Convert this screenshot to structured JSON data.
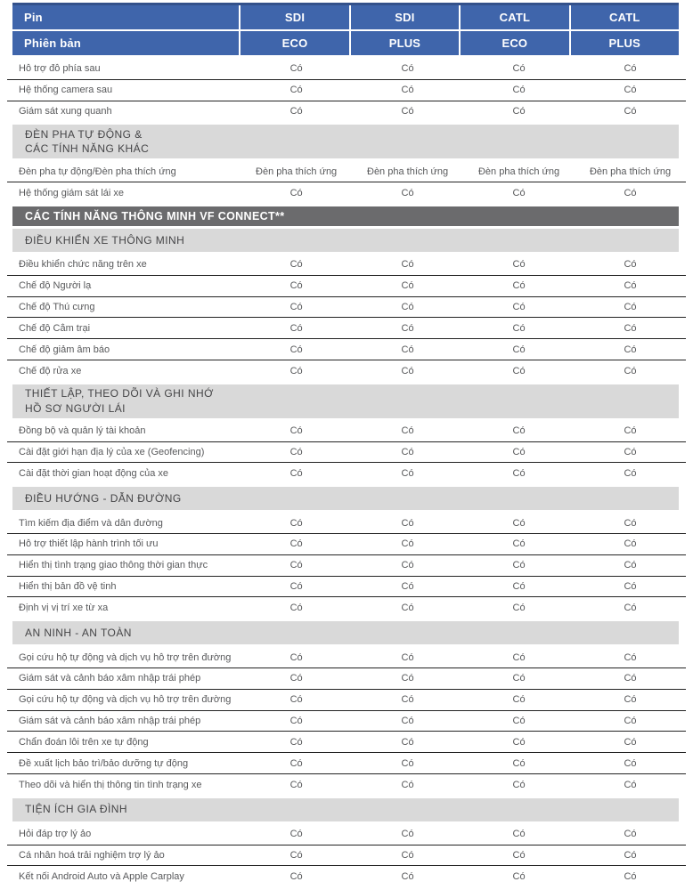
{
  "colors": {
    "header_blue": "#3F65AB",
    "header_blue_dark": "#33518B",
    "header_text": "#FFFFFF",
    "band_light": "#D9D9D9",
    "band_dark": "#6B6B6D",
    "band_text": "#454547",
    "body_text": "#58595B",
    "row_line": "#232323"
  },
  "table": {
    "header": {
      "row1_label": "Pin",
      "row1_values": [
        "SDI",
        "SDI",
        "CATL",
        "CATL"
      ],
      "row2_label": "Phiên bản",
      "row2_values": [
        "ECO",
        "PLUS",
        "ECO",
        "PLUS"
      ]
    },
    "yes_value": "Có",
    "body": [
      {
        "kind": "row",
        "label": "Hỗ trợ đỗ phía sau",
        "values": [
          "Có",
          "Có",
          "Có",
          "Có"
        ]
      },
      {
        "kind": "row",
        "label": "Hệ thống camera sau",
        "values": [
          "Có",
          "Có",
          "Có",
          "Có"
        ]
      },
      {
        "kind": "row",
        "label": "Giám sát xung quanh",
        "values": [
          "Có",
          "Có",
          "Có",
          "Có"
        ]
      },
      {
        "kind": "section_light",
        "lines": [
          "ĐÈN PHA TỰ ĐỘNG &",
          "CÁC TÍNH NĂNG KHÁC"
        ]
      },
      {
        "kind": "row",
        "label": "Đèn pha tự động/Đèn pha thích ứng",
        "values": [
          "Đèn pha thích ứng",
          "Đèn pha thích ứng",
          "Đèn pha thích ứng",
          "Đèn pha thích ứng"
        ]
      },
      {
        "kind": "row",
        "label": "Hệ thống giám sát lái xe",
        "values": [
          "Có",
          "Có",
          "Có",
          "Có"
        ]
      },
      {
        "kind": "section_dark",
        "lines": [
          "CÁC TÍNH NĂNG THÔNG MINH VF CONNECT**"
        ]
      },
      {
        "kind": "section_light",
        "lines": [
          "ĐIỀU KHIỂN XE THÔNG MINH"
        ]
      },
      {
        "kind": "row",
        "label": "Điều khiển chức năng trên xe",
        "values": [
          "Có",
          "Có",
          "Có",
          "Có"
        ]
      },
      {
        "kind": "row",
        "label": "Chế độ Người lạ",
        "values": [
          "Có",
          "Có",
          "Có",
          "Có"
        ]
      },
      {
        "kind": "row",
        "label": "Chế độ Thú cưng",
        "values": [
          "Có",
          "Có",
          "Có",
          "Có"
        ]
      },
      {
        "kind": "row",
        "label": "Chế độ Cắm trại",
        "values": [
          "Có",
          "Có",
          "Có",
          "Có"
        ]
      },
      {
        "kind": "row",
        "label": "Chế độ giảm âm báo",
        "values": [
          "Có",
          "Có",
          "Có",
          "Có"
        ]
      },
      {
        "kind": "row",
        "label": "Chế độ rửa xe",
        "values": [
          "Có",
          "Có",
          "Có",
          "Có"
        ]
      },
      {
        "kind": "section_light",
        "lines": [
          "THIẾT LẬP, THEO DÕI VÀ GHI NHỚ",
          "HỒ SƠ NGƯỜI LÁI"
        ]
      },
      {
        "kind": "row",
        "label": "Đồng bộ và quản lý tài khoản",
        "values": [
          "Có",
          "Có",
          "Có",
          "Có"
        ]
      },
      {
        "kind": "row",
        "label": "Cài đặt giới hạn địa lý của xe (Geofencing)",
        "values": [
          "Có",
          "Có",
          "Có",
          "Có"
        ]
      },
      {
        "kind": "row",
        "label": "Cài đặt thời gian hoạt động của xe",
        "values": [
          "Có",
          "Có",
          "Có",
          "Có"
        ]
      },
      {
        "kind": "section_light",
        "lines": [
          "ĐIỀU HƯỚNG - DẪN ĐƯỜNG"
        ]
      },
      {
        "kind": "row",
        "label": "Tìm kiếm địa điểm và dẫn đường",
        "values": [
          "Có",
          "Có",
          "Có",
          "Có"
        ]
      },
      {
        "kind": "row",
        "label": "Hỗ trợ thiết lập hành trình tối ưu",
        "values": [
          "Có",
          "Có",
          "Có",
          "Có"
        ]
      },
      {
        "kind": "row",
        "label": "Hiển thị tình trạng giao thông thời gian thực",
        "values": [
          "Có",
          "Có",
          "Có",
          "Có"
        ]
      },
      {
        "kind": "row",
        "label": "Hiển thị bản đồ vệ tinh",
        "values": [
          "Có",
          "Có",
          "Có",
          "Có"
        ]
      },
      {
        "kind": "row",
        "label": "Định vị vị trí xe từ xa",
        "values": [
          "Có",
          "Có",
          "Có",
          "Có"
        ]
      },
      {
        "kind": "section_light",
        "lines": [
          "AN NINH - AN TOÀN"
        ]
      },
      {
        "kind": "row",
        "label": "Gọi cứu hộ tự động và dịch vụ hỗ trợ trên đường",
        "values": [
          "Có",
          "Có",
          "Có",
          "Có"
        ]
      },
      {
        "kind": "row",
        "label": "Giám sát và cảnh báo xâm nhập trái phép",
        "values": [
          "Có",
          "Có",
          "Có",
          "Có"
        ]
      },
      {
        "kind": "row",
        "label": "Gọi cứu hộ tự động và dịch vụ hỗ trợ trên đường",
        "values": [
          "Có",
          "Có",
          "Có",
          "Có"
        ]
      },
      {
        "kind": "row",
        "label": "Giám sát và cảnh báo xâm nhập trái phép",
        "values": [
          "Có",
          "Có",
          "Có",
          "Có"
        ]
      },
      {
        "kind": "row",
        "label": "Chẩn đoán lỗi trên xe tự động",
        "values": [
          "Có",
          "Có",
          "Có",
          "Có"
        ]
      },
      {
        "kind": "row",
        "label": "Đề xuất lịch bảo trì/bảo dưỡng tự động",
        "values": [
          "Có",
          "Có",
          "Có",
          "Có"
        ]
      },
      {
        "kind": "row",
        "label": "Theo dõi và hiển thị thông tin tình trạng xe",
        "values": [
          "Có",
          "Có",
          "Có",
          "Có"
        ]
      },
      {
        "kind": "section_light",
        "lines": [
          "TIỆN ÍCH GIA ĐÌNH"
        ]
      },
      {
        "kind": "row",
        "label": "Hỏi đáp trợ lý ảo",
        "values": [
          "Có",
          "Có",
          "Có",
          "Có"
        ]
      },
      {
        "kind": "row",
        "label": "Cá nhân hoá trải nghiệm trợ lý ảo",
        "values": [
          "Có",
          "Có",
          "Có",
          "Có"
        ]
      },
      {
        "kind": "row",
        "label": "Kết nối Android Auto và Apple Carplay",
        "values": [
          "Có",
          "Có",
          "Có",
          "Có"
        ]
      }
    ]
  }
}
